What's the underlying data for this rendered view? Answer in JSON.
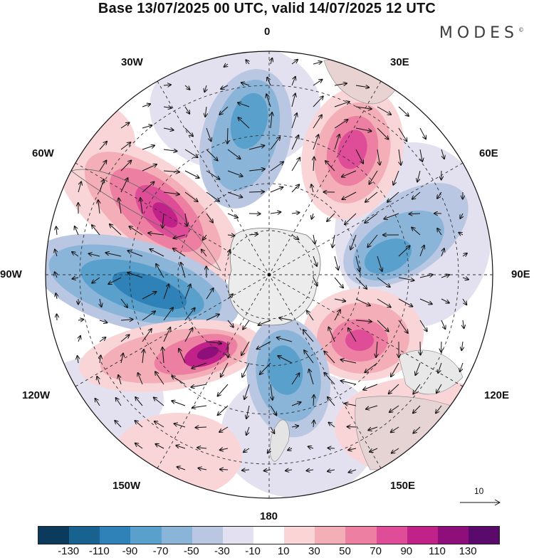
{
  "title": "Base 13/07/2025 00 UTC, valid 14/07/2025 12 UTC",
  "brand": "MODES",
  "brand_mark": "©",
  "longitude_labels": {
    "top": "0",
    "bottom": "180",
    "left": "90W",
    "right": "90E",
    "w30": "30W",
    "w60": "60W",
    "w120": "120W",
    "w150": "150W",
    "e30": "30E",
    "e60": "60E",
    "e120": "120E",
    "e150": "150E"
  },
  "projection": "south polar stereographic",
  "reference_vector": {
    "label": "10"
  },
  "colorbar": {
    "colors": [
      "#0c3a5c",
      "#17628f",
      "#2f82b8",
      "#5aa0cc",
      "#8ab4d8",
      "#b9c7e2",
      "#e3e1ef",
      "#ffffff",
      "#f9d5d7",
      "#f3aeb8",
      "#ec7fa2",
      "#df4c97",
      "#c1228a",
      "#8f0f7a",
      "#5a0a6a"
    ],
    "ticks": [
      "-130",
      "-110",
      "-90",
      "-70",
      "-50",
      "-30",
      "-10",
      "10",
      "30",
      "50",
      "70",
      "90",
      "110",
      "130"
    ]
  }
}
